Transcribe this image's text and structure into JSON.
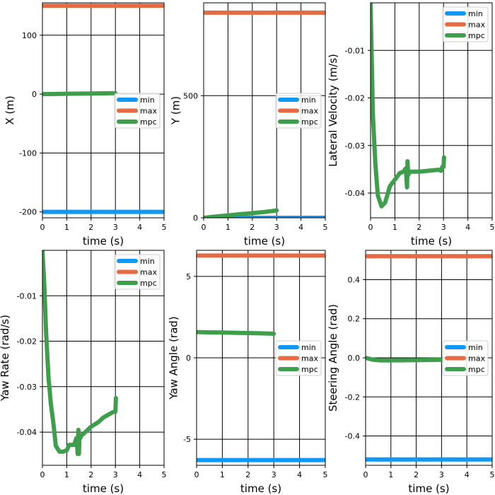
{
  "colors": {
    "min": "#0d99f5",
    "max": "#e36c45",
    "mpc": "#3f9e4c"
  },
  "legend_labels": [
    "min",
    "max",
    "mpc"
  ],
  "chart_data": [
    {
      "type": "line",
      "xlabel": "time (s)",
      "ylabel": "X (m)",
      "xlim": [
        0,
        5
      ],
      "ylim": [
        -210,
        155
      ],
      "xticks": [
        0,
        1,
        2,
        3,
        4,
        5
      ],
      "xtick_labels": [
        "0",
        "1",
        "2",
        "3",
        "4",
        "5"
      ],
      "yticks": [
        -200,
        -100,
        0,
        100
      ],
      "ytick_labels": [
        "-200",
        "-100",
        "0",
        "100"
      ],
      "grid": true,
      "legend_position": "center-right",
      "series": [
        {
          "name": "min",
          "x": [
            0,
            5
          ],
          "y": [
            -200,
            -200
          ]
        },
        {
          "name": "max",
          "x": [
            0,
            5
          ],
          "y": [
            150,
            150
          ]
        },
        {
          "name": "mpc",
          "x": [
            0,
            0.5,
            1,
            1.5,
            2,
            2.5,
            3
          ],
          "y": [
            0,
            0.2,
            0.5,
            0.8,
            1.0,
            1.3,
            1.6
          ]
        }
      ]
    },
    {
      "type": "line",
      "xlabel": "time (s)",
      "ylabel": "Y (m)",
      "xlim": [
        0,
        5
      ],
      "ylim": [
        0,
        880
      ],
      "xticks": [
        0,
        1,
        2,
        3,
        4,
        5
      ],
      "xtick_labels": [
        "0",
        "1",
        "2",
        "3",
        "4",
        "5"
      ],
      "yticks": [
        0,
        500
      ],
      "ytick_labels": [
        "0",
        "500"
      ],
      "grid": true,
      "legend_position": "center-right",
      "series": [
        {
          "name": "min",
          "x": [
            0,
            5
          ],
          "y": [
            0,
            0
          ]
        },
        {
          "name": "max",
          "x": [
            0,
            5
          ],
          "y": [
            840,
            840
          ]
        },
        {
          "name": "mpc",
          "x": [
            0,
            0.5,
            1,
            1.5,
            2,
            2.5,
            3
          ],
          "y": [
            0,
            5,
            10,
            15,
            19,
            24,
            30
          ]
        }
      ]
    },
    {
      "type": "line",
      "xlabel": "time (s)",
      "ylabel": "Lateral Velocity (m/s)",
      "xlim": [
        0,
        5
      ],
      "ylim": [
        -0.0452,
        0.0
      ],
      "xticks": [
        0,
        1,
        2,
        3,
        4,
        5
      ],
      "xtick_labels": [
        "0",
        "1",
        "2",
        "3",
        "4",
        "5"
      ],
      "yticks": [
        -0.04,
        -0.03,
        -0.02,
        -0.01
      ],
      "ytick_labels": [
        "-0.04",
        "-0.03",
        "-0.02",
        "-0.01"
      ],
      "grid": true,
      "legend_position": "upper-right",
      "series": [
        {
          "name": "min",
          "x": [],
          "y": []
        },
        {
          "name": "max",
          "x": [],
          "y": []
        },
        {
          "name": "mpc",
          "x": [
            0,
            0.05,
            0.1,
            0.2,
            0.3,
            0.45,
            0.6,
            0.8,
            1.0,
            1.2,
            1.35,
            1.45,
            1.5,
            1.52,
            1.55,
            1.6,
            1.8,
            2.0,
            2.2,
            2.4,
            2.6,
            2.8,
            2.9,
            2.95,
            3.0,
            3.02
          ],
          "y": [
            0,
            -0.012,
            -0.024,
            -0.034,
            -0.0405,
            -0.0428,
            -0.042,
            -0.0385,
            -0.0372,
            -0.0358,
            -0.0355,
            -0.0348,
            -0.0388,
            -0.0333,
            -0.0362,
            -0.0355,
            -0.0355,
            -0.0355,
            -0.0354,
            -0.0353,
            -0.0352,
            -0.0351,
            -0.0353,
            -0.0345,
            -0.0345,
            -0.0325
          ]
        }
      ]
    },
    {
      "type": "line",
      "xlabel": "time (s)",
      "ylabel": "Yaw Rate (rad/s)",
      "xlim": [
        0,
        5
      ],
      "ylim": [
        -0.0473,
        0.0
      ],
      "xticks": [
        0,
        1,
        2,
        3,
        4,
        5
      ],
      "xtick_labels": [
        "0",
        "1",
        "2",
        "3",
        "4",
        "5"
      ],
      "yticks": [
        -0.04,
        -0.03,
        -0.02,
        -0.01
      ],
      "ytick_labels": [
        "-0.04",
        "-0.03",
        "-0.02",
        "-0.01"
      ],
      "grid": true,
      "legend_position": "upper-right",
      "series": [
        {
          "name": "min",
          "x": [],
          "y": []
        },
        {
          "name": "max",
          "x": [],
          "y": []
        },
        {
          "name": "mpc",
          "x": [
            0,
            0.08,
            0.15,
            0.25,
            0.35,
            0.45,
            0.55,
            0.7,
            0.85,
            1.0,
            1.1,
            1.2,
            1.3,
            1.4,
            1.45,
            1.48,
            1.5,
            1.52,
            1.55,
            1.6,
            1.8,
            2.0,
            2.3,
            2.5,
            2.7,
            2.9,
            3.0,
            3.02
          ],
          "y": [
            0,
            -0.008,
            -0.018,
            -0.028,
            -0.034,
            -0.038,
            -0.043,
            -0.0443,
            -0.0443,
            -0.044,
            -0.0428,
            -0.0428,
            -0.0428,
            -0.0413,
            -0.0448,
            -0.0395,
            -0.0448,
            -0.0408,
            -0.0413,
            -0.0408,
            -0.0398,
            -0.0388,
            -0.0378,
            -0.0368,
            -0.0362,
            -0.0356,
            -0.0355,
            -0.0325
          ]
        }
      ]
    },
    {
      "type": "line",
      "xlabel": "time (s)",
      "ylabel": "Yaw Angle (rad)",
      "xlim": [
        0,
        5
      ],
      "ylim": [
        -6.6,
        6.6
      ],
      "xticks": [
        0,
        1,
        2,
        3,
        4,
        5
      ],
      "xtick_labels": [
        "0",
        "1",
        "2",
        "3",
        "4",
        "5"
      ],
      "yticks": [
        -5,
        0,
        5
      ],
      "ytick_labels": [
        "-5",
        "0",
        "5"
      ],
      "grid": true,
      "legend_position": "center-right",
      "series": [
        {
          "name": "min",
          "x": [
            0,
            5
          ],
          "y": [
            -6.28,
            -6.28
          ]
        },
        {
          "name": "max",
          "x": [
            0,
            5
          ],
          "y": [
            6.28,
            6.28
          ]
        },
        {
          "name": "mpc",
          "x": [
            0,
            0.5,
            1,
            1.5,
            2,
            2.5,
            3
          ],
          "y": [
            1.58,
            1.565,
            1.55,
            1.535,
            1.52,
            1.505,
            1.48
          ]
        }
      ]
    },
    {
      "type": "line",
      "xlabel": "time (s)",
      "ylabel": "Steering Angle (rad)",
      "xlim": [
        0,
        5
      ],
      "ylim": [
        -0.55,
        0.55
      ],
      "xticks": [
        0,
        1,
        2,
        3,
        4,
        5
      ],
      "xtick_labels": [
        "0",
        "1",
        "2",
        "3",
        "4",
        "5"
      ],
      "yticks": [
        -0.4,
        -0.2,
        0.0,
        0.2,
        0.4
      ],
      "ytick_labels": [
        "-0.4",
        "-0.2",
        "0.0",
        "0.2",
        "0.4"
      ],
      "grid": true,
      "legend_position": "center-right",
      "series": [
        {
          "name": "min",
          "x": [
            0,
            5
          ],
          "y": [
            -0.52,
            -0.52
          ]
        },
        {
          "name": "max",
          "x": [
            0,
            5
          ],
          "y": [
            0.52,
            0.52
          ]
        },
        {
          "name": "mpc",
          "x": [
            0,
            0.3,
            0.6,
            1.0,
            1.3,
            1.45,
            1.6,
            2.0,
            2.5,
            3.0
          ],
          "y": [
            0,
            -0.01,
            -0.013,
            -0.013,
            -0.012,
            -0.013,
            -0.012,
            -0.012,
            -0.011,
            -0.01
          ]
        }
      ]
    }
  ]
}
